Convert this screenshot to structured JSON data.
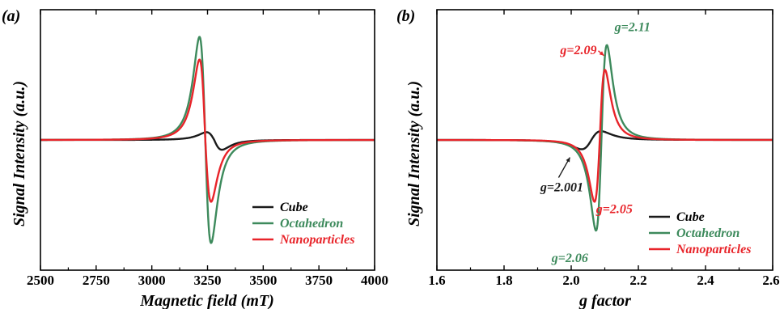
{
  "colors": {
    "cube": "#1a1a1a",
    "octahedron": "#3d8a5c",
    "nanoparticles": "#e8242a"
  },
  "chart_data": [
    {
      "panel_label": "(a)",
      "type": "line",
      "xlabel": "Magnetic field (mT)",
      "ylabel": "Signal Intensity (a.u.)",
      "xlim": [
        2500,
        4000
      ],
      "ylim": [
        -1.0,
        1.0
      ],
      "xticks": [
        "2500",
        "2750",
        "3000",
        "3250",
        "3500",
        "3750",
        "4000"
      ],
      "xtick_values": [
        2500,
        2750,
        3000,
        3250,
        3500,
        3750,
        4000
      ],
      "show_yticks": false,
      "legend_position": "lower-right",
      "series": [
        {
          "name": "Cube",
          "color": "#1a1a1a",
          "shape": {
            "center": 3280,
            "width": 60,
            "amp_pos": 0.075,
            "amp_neg": 0.095,
            "tail": 600
          }
        },
        {
          "name": "Octahedron",
          "color": "#3d8a5c",
          "shape": {
            "center": 3240,
            "width": 45,
            "amp_pos": 1.0,
            "amp_neg": 1.0,
            "tail": 600
          }
        },
        {
          "name": "Nanoparticles",
          "color": "#e8242a",
          "shape": {
            "center": 3240,
            "width": 45,
            "amp_pos": 0.78,
            "amp_neg": 0.6,
            "tail": 600
          }
        }
      ]
    },
    {
      "panel_label": "(b)",
      "type": "line",
      "xlabel": "g factor",
      "ylabel": "Signal Intensity (a.u.)",
      "xlim": [
        1.6,
        2.6
      ],
      "ylim": [
        -1.0,
        1.0
      ],
      "xticks": [
        "1.6",
        "1.8",
        "2.0",
        "2.2",
        "2.4",
        "2.6"
      ],
      "xtick_values": [
        1.6,
        1.8,
        2.0,
        2.2,
        2.4,
        2.6
      ],
      "show_yticks": false,
      "legend_position": "lower-right",
      "series": [
        {
          "name": "Cube",
          "color": "#1a1a1a",
          "shape": {
            "center": 2.06,
            "width": 0.05,
            "amp_pos": 0.085,
            "amp_neg": 0.09,
            "tail": 0.5,
            "neg_first": true
          }
        },
        {
          "name": "Octahedron",
          "color": "#3d8a5c",
          "shape": {
            "center": 2.09,
            "width": 0.028,
            "amp_pos": 0.92,
            "amp_neg": 0.88,
            "tail": 0.5,
            "neg_first": true
          }
        },
        {
          "name": "Nanoparticles",
          "color": "#e8242a",
          "shape": {
            "center": 2.085,
            "width": 0.027,
            "amp_pos": 0.68,
            "amp_neg": 0.6,
            "tail": 0.5,
            "neg_first": true
          }
        }
      ],
      "annotations": [
        {
          "text": "g=2.11",
          "color": "#3d8a5c",
          "x": 2.11,
          "y": 0.93,
          "anchor": "right"
        },
        {
          "text": "g=2.09",
          "color": "#e8242a",
          "x": 2.1,
          "y": 0.69,
          "anchor": "left",
          "arrow": true
        },
        {
          "text": "g=2.001",
          "color": "#1a1a1a",
          "x": 2.001,
          "y": -0.09,
          "anchor": "below-left",
          "arrow": true
        },
        {
          "text": "g=2.05",
          "color": "#e8242a",
          "x": 2.05,
          "y": -0.6,
          "anchor": "right-up"
        },
        {
          "text": "g=2.06",
          "color": "#3d8a5c",
          "x": 2.06,
          "y": -0.88,
          "anchor": "left-below"
        }
      ]
    }
  ]
}
